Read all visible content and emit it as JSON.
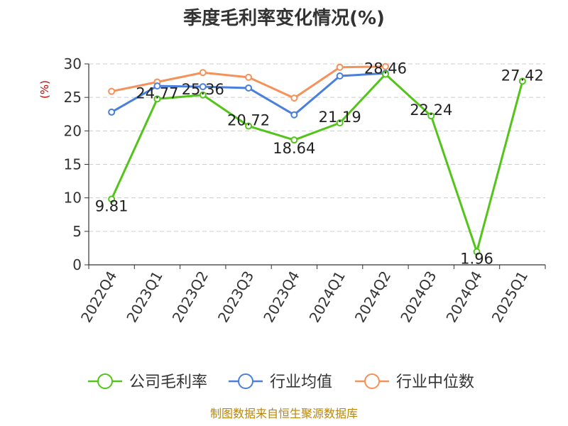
{
  "chart_data": {
    "type": "line",
    "title": "季度毛利率变化情况(%)",
    "ylabel": "(%)",
    "xlabel": "",
    "ylim": [
      0,
      30
    ],
    "yticks": [
      0,
      5,
      10,
      15,
      20,
      25,
      30
    ],
    "grid": true,
    "legend_position": "bottom",
    "categories": [
      "2022Q4",
      "2023Q1",
      "2023Q2",
      "2023Q3",
      "2023Q4",
      "2024Q1",
      "2024Q2",
      "2024Q3",
      "2024Q4",
      "2025Q1"
    ],
    "series": [
      {
        "name": "公司毛利率",
        "color": "#52c41a",
        "values": [
          9.81,
          24.77,
          25.36,
          20.72,
          18.64,
          21.19,
          28.46,
          22.24,
          1.96,
          27.42
        ],
        "labels": [
          "9.81",
          "24.77",
          "25.36",
          "20.72",
          "18.64",
          "21.19",
          "28.46",
          "22.24",
          "1.96",
          "27.42"
        ]
      },
      {
        "name": "行业均值",
        "color": "#4a7fdc",
        "values": [
          22.8,
          26.7,
          26.6,
          26.4,
          22.4,
          28.2,
          28.6,
          null,
          null,
          null
        ]
      },
      {
        "name": "行业中位数",
        "color": "#f5915a",
        "values": [
          25.9,
          27.3,
          28.7,
          28.0,
          24.9,
          29.5,
          29.6,
          null,
          null,
          null
        ]
      }
    ]
  },
  "source_text": "制图数据来自恒生聚源数据库"
}
